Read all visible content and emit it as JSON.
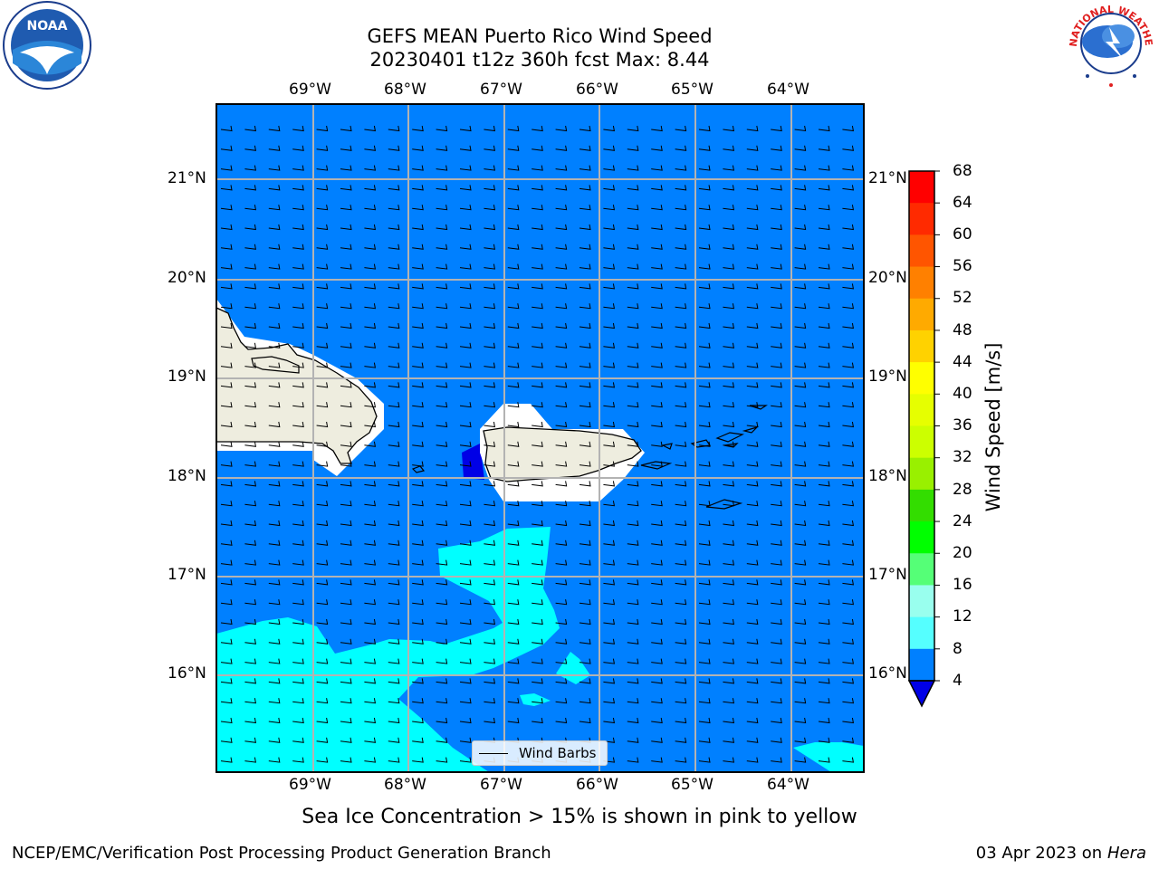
{
  "header": {
    "title_line1": "GEFS MEAN Puerto Rico Wind Speed",
    "title_line2": "20230401 t12z 360h fcst   Max: 8.44"
  },
  "map": {
    "lon_ticks": [
      "69°W",
      "68°W",
      "67°W",
      "66°W",
      "65°W",
      "64°W"
    ],
    "lat_ticks": [
      "21°N",
      "20°N",
      "19°N",
      "18°N",
      "17°N",
      "16°N"
    ],
    "ocean_color": "#0080ff",
    "land_color": "#eeeddf",
    "mask_color": "#ffffff",
    "band_8_12_color": "#00ffff",
    "band_4_8_dark_color": "#0000e6",
    "legend_label": "Wind Barbs"
  },
  "colorbar": {
    "label": "Wind Speed [m/s]",
    "ticks": [
      "68",
      "64",
      "60",
      "56",
      "52",
      "48",
      "44",
      "40",
      "36",
      "32",
      "28",
      "24",
      "20",
      "16",
      "12",
      "8",
      "4"
    ],
    "colors": [
      "#ff0000",
      "#ff2a00",
      "#ff5500",
      "#ff8000",
      "#ffaa00",
      "#ffd200",
      "#ffff00",
      "#e6ff00",
      "#ccff00",
      "#99f000",
      "#33dd00",
      "#00ff00",
      "#55ff77",
      "#99ffee",
      "#55ffff",
      "#00ffff",
      "#0080ff"
    ],
    "under_color": "#0000e6"
  },
  "caption": "Sea Ice Concentration > 15% is shown in pink to yellow",
  "footer": {
    "left": "NCEP/EMC/Verification Post Processing Product Generation Branch",
    "right_date": "03 Apr 2023 on ",
    "right_machine": "Hera"
  },
  "logos": {
    "noaa_text": "NOAA",
    "nws_text": "NATIONAL WEATHER SERVICE"
  }
}
